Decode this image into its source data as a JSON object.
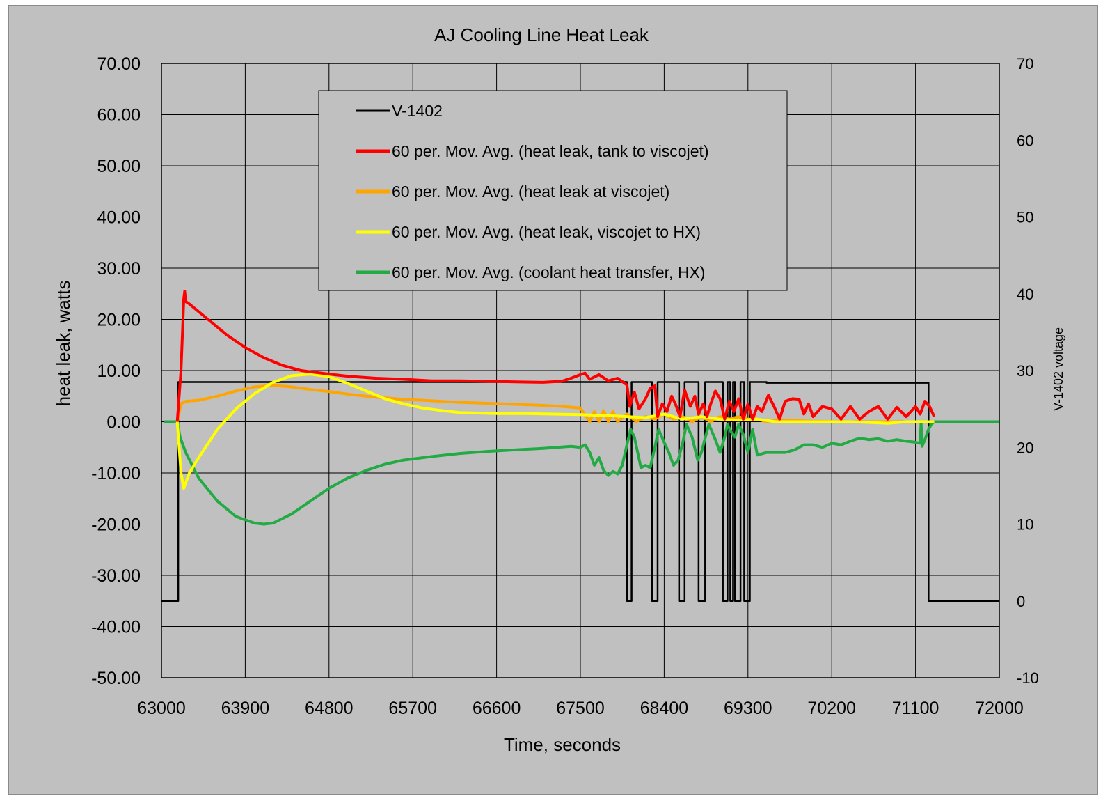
{
  "chart_data": {
    "type": "line",
    "title": "AJ Cooling Line Heat Leak",
    "xlabel": "Time, seconds",
    "ylabel": "heat leak, watts",
    "y2label": "V-1402 voltage",
    "xlim": [
      63000,
      72000
    ],
    "ylim": [
      -50,
      70
    ],
    "y2lim": [
      -10,
      70
    ],
    "x_ticks": [
      63000,
      63900,
      64800,
      65700,
      66600,
      67500,
      68400,
      69300,
      70200,
      71100,
      72000
    ],
    "y_tick_labels": [
      "70.00",
      "60.00",
      "50.00",
      "40.00",
      "30.00",
      "20.00",
      "10.00",
      "0.00",
      "-10.00",
      "-20.00",
      "-30.00",
      "-40.00",
      "-50.00"
    ],
    "y2_ticks": [
      70,
      60,
      50,
      40,
      30,
      20,
      10,
      0,
      -10
    ],
    "grid": true,
    "legend_position": "top-center",
    "series": [
      {
        "name": "V-1402",
        "axis": "right",
        "color": "#000000",
        "step": true,
        "points": [
          [
            63000,
            0
          ],
          [
            63180,
            0
          ],
          [
            63180,
            28.5
          ],
          [
            68000,
            28.5
          ],
          [
            68000,
            0
          ],
          [
            68050,
            0
          ],
          [
            68050,
            28.5
          ],
          [
            68270,
            28.5
          ],
          [
            68270,
            0
          ],
          [
            68330,
            0
          ],
          [
            68330,
            28.5
          ],
          [
            68560,
            28.5
          ],
          [
            68560,
            0
          ],
          [
            68620,
            0
          ],
          [
            68620,
            28.5
          ],
          [
            68770,
            28.5
          ],
          [
            68770,
            0
          ],
          [
            68840,
            0
          ],
          [
            68840,
            28.5
          ],
          [
            69030,
            28.5
          ],
          [
            69030,
            0
          ],
          [
            69080,
            0
          ],
          [
            69080,
            28.5
          ],
          [
            69110,
            28.5
          ],
          [
            69110,
            0
          ],
          [
            69140,
            0
          ],
          [
            69140,
            28.5
          ],
          [
            69160,
            28.5
          ],
          [
            69160,
            0
          ],
          [
            69220,
            0
          ],
          [
            69220,
            28.5
          ],
          [
            69260,
            28.5
          ],
          [
            69260,
            0
          ],
          [
            69320,
            0
          ],
          [
            69320,
            28.5
          ],
          [
            69500,
            28.5
          ],
          [
            69500,
            28.4
          ],
          [
            71240,
            28.4
          ],
          [
            71240,
            0
          ],
          [
            72000,
            0
          ]
        ]
      },
      {
        "name": "60 per. Mov. Avg. (heat leak, tank to viscojet)",
        "axis": "left",
        "color": "#ff0000",
        "points": [
          [
            63170,
            0
          ],
          [
            63210,
            10
          ],
          [
            63240,
            24
          ],
          [
            63250,
            25.5
          ],
          [
            63260,
            23.5
          ],
          [
            63300,
            23
          ],
          [
            63500,
            20
          ],
          [
            63700,
            17
          ],
          [
            63900,
            14.5
          ],
          [
            64100,
            12.5
          ],
          [
            64300,
            11
          ],
          [
            64500,
            10
          ],
          [
            64800,
            9.3
          ],
          [
            65000,
            8.9
          ],
          [
            65300,
            8.5
          ],
          [
            65600,
            8.3
          ],
          [
            65900,
            8
          ],
          [
            66200,
            8
          ],
          [
            66500,
            7.9
          ],
          [
            66800,
            7.8
          ],
          [
            67100,
            7.7
          ],
          [
            67300,
            7.9
          ],
          [
            67400,
            8.5
          ],
          [
            67500,
            9.2
          ],
          [
            67550,
            9.5
          ],
          [
            67600,
            8.3
          ],
          [
            67700,
            9.2
          ],
          [
            67800,
            8
          ],
          [
            67900,
            8.5
          ],
          [
            68000,
            7.2
          ],
          [
            68030,
            3
          ],
          [
            68080,
            5.8
          ],
          [
            68130,
            2.5
          ],
          [
            68200,
            4.5
          ],
          [
            68250,
            6.5
          ],
          [
            68300,
            7
          ],
          [
            68330,
            1
          ],
          [
            68380,
            3.5
          ],
          [
            68430,
            2
          ],
          [
            68480,
            5
          ],
          [
            68520,
            3.5
          ],
          [
            68570,
            1
          ],
          [
            68620,
            6.2
          ],
          [
            68680,
            3
          ],
          [
            68730,
            5
          ],
          [
            68770,
            1.5
          ],
          [
            68820,
            3.5
          ],
          [
            68860,
            1
          ],
          [
            68900,
            3.5
          ],
          [
            68950,
            6
          ],
          [
            69000,
            4.5
          ],
          [
            69050,
            0.5
          ],
          [
            69100,
            4
          ],
          [
            69150,
            2
          ],
          [
            69200,
            4.5
          ],
          [
            69250,
            0.5
          ],
          [
            69300,
            3.5
          ],
          [
            69350,
            0.5
          ],
          [
            69400,
            3
          ],
          [
            69450,
            2
          ],
          [
            69520,
            5.2
          ],
          [
            69580,
            3
          ],
          [
            69640,
            0.5
          ],
          [
            69700,
            4
          ],
          [
            69780,
            4.5
          ],
          [
            69850,
            4.4
          ],
          [
            69900,
            1.5
          ],
          [
            69950,
            3.5
          ],
          [
            70000,
            1
          ],
          [
            70100,
            3
          ],
          [
            70200,
            2.5
          ],
          [
            70300,
            0.5
          ],
          [
            70400,
            3
          ],
          [
            70500,
            0.5
          ],
          [
            70600,
            2
          ],
          [
            70700,
            3
          ],
          [
            70800,
            0.5
          ],
          [
            70900,
            2.8
          ],
          [
            71000,
            1
          ],
          [
            71100,
            3
          ],
          [
            71150,
            1.5
          ],
          [
            71200,
            4
          ],
          [
            71250,
            3
          ],
          [
            71300,
            1
          ]
        ]
      },
      {
        "name": "60 per. Mov. Avg. (heat leak at viscojet)",
        "axis": "left",
        "color": "#ffa500",
        "points": [
          [
            63170,
            0
          ],
          [
            63210,
            3.5
          ],
          [
            63260,
            4
          ],
          [
            63400,
            4.2
          ],
          [
            63600,
            5
          ],
          [
            63800,
            6
          ],
          [
            64000,
            6.8
          ],
          [
            64200,
            7.1
          ],
          [
            64400,
            6.8
          ],
          [
            64600,
            6.3
          ],
          [
            64800,
            5.9
          ],
          [
            65000,
            5.4
          ],
          [
            65300,
            4.8
          ],
          [
            65600,
            4.4
          ],
          [
            65900,
            4.1
          ],
          [
            66200,
            3.8
          ],
          [
            66500,
            3.6
          ],
          [
            66800,
            3.4
          ],
          [
            67100,
            3.2
          ],
          [
            67300,
            3
          ],
          [
            67500,
            2.7
          ],
          [
            67600,
            0
          ],
          [
            67650,
            2
          ],
          [
            67700,
            0
          ],
          [
            67750,
            2.2
          ],
          [
            67800,
            0
          ],
          [
            67850,
            2
          ],
          [
            67900,
            0
          ],
          [
            68000,
            1.5
          ],
          [
            68100,
            0
          ],
          [
            68200,
            1
          ],
          [
            68300,
            0.5
          ],
          [
            68400,
            1.5
          ],
          [
            68500,
            0.5
          ],
          [
            68600,
            1
          ],
          [
            68700,
            0
          ],
          [
            68800,
            1
          ],
          [
            68900,
            0
          ],
          [
            69000,
            1
          ],
          [
            69100,
            0.5
          ],
          [
            69200,
            1
          ],
          [
            69300,
            0.5
          ],
          [
            69400,
            0.5
          ],
          [
            69500,
            0
          ],
          [
            69600,
            0.3
          ],
          [
            69800,
            0.2
          ],
          [
            70000,
            0.1
          ],
          [
            70400,
            0
          ],
          [
            70800,
            0
          ],
          [
            71300,
            0
          ]
        ]
      },
      {
        "name": "60 per. Mov. Avg. (heat leak, viscojet to HX)",
        "axis": "left",
        "color": "#ffff00",
        "points": [
          [
            63170,
            0
          ],
          [
            63210,
            -10
          ],
          [
            63240,
            -13
          ],
          [
            63300,
            -10
          ],
          [
            63400,
            -7
          ],
          [
            63600,
            -1.5
          ],
          [
            63800,
            2.5
          ],
          [
            64000,
            5.5
          ],
          [
            64200,
            7.7
          ],
          [
            64400,
            9
          ],
          [
            64600,
            9.3
          ],
          [
            64800,
            8.8
          ],
          [
            65000,
            7.5
          ],
          [
            65200,
            6
          ],
          [
            65400,
            4.5
          ],
          [
            65600,
            3.5
          ],
          [
            65800,
            2.7
          ],
          [
            66000,
            2.2
          ],
          [
            66200,
            1.8
          ],
          [
            66400,
            1.7
          ],
          [
            66600,
            1.6
          ],
          [
            66900,
            1.6
          ],
          [
            67200,
            1.5
          ],
          [
            67500,
            1.4
          ],
          [
            67800,
            1.2
          ],
          [
            68000,
            1
          ],
          [
            68200,
            0.8
          ],
          [
            68400,
            1.5
          ],
          [
            68600,
            0.5
          ],
          [
            68800,
            1
          ],
          [
            69000,
            0.5
          ],
          [
            69200,
            0.3
          ],
          [
            69400,
            0.5
          ],
          [
            69600,
            0
          ],
          [
            70000,
            0
          ],
          [
            70400,
            0
          ],
          [
            70800,
            -0.3
          ],
          [
            71000,
            0
          ],
          [
            71300,
            0
          ]
        ]
      },
      {
        "name": "60 per. Mov. Avg. (coolant heat transfer, HX)",
        "axis": "left",
        "color": "#22aa44",
        "points": [
          [
            63030,
            0
          ],
          [
            63170,
            0
          ],
          [
            63200,
            -3
          ],
          [
            63260,
            -6
          ],
          [
            63400,
            -11
          ],
          [
            63600,
            -15.5
          ],
          [
            63800,
            -18.5
          ],
          [
            64000,
            -19.8
          ],
          [
            64100,
            -20
          ],
          [
            64200,
            -19.8
          ],
          [
            64400,
            -18
          ],
          [
            64600,
            -15.5
          ],
          [
            64800,
            -13
          ],
          [
            65000,
            -11
          ],
          [
            65200,
            -9.5
          ],
          [
            65400,
            -8.3
          ],
          [
            65600,
            -7.5
          ],
          [
            65900,
            -6.8
          ],
          [
            66200,
            -6.2
          ],
          [
            66500,
            -5.8
          ],
          [
            66800,
            -5.5
          ],
          [
            67100,
            -5.2
          ],
          [
            67400,
            -4.8
          ],
          [
            67500,
            -5
          ],
          [
            67550,
            -4.5
          ],
          [
            67600,
            -6
          ],
          [
            67650,
            -8.5
          ],
          [
            67700,
            -7
          ],
          [
            67750,
            -9.5
          ],
          [
            67800,
            -10.5
          ],
          [
            67850,
            -9.7
          ],
          [
            67900,
            -10.2
          ],
          [
            67950,
            -8.5
          ],
          [
            68000,
            -4.5
          ],
          [
            68040,
            -1.5
          ],
          [
            68080,
            -3
          ],
          [
            68150,
            -9
          ],
          [
            68200,
            -8.5
          ],
          [
            68250,
            -9
          ],
          [
            68300,
            -5
          ],
          [
            68340,
            -1.5
          ],
          [
            68400,
            -4
          ],
          [
            68450,
            -6
          ],
          [
            68500,
            -8.5
          ],
          [
            68550,
            -7.5
          ],
          [
            68600,
            -4
          ],
          [
            68640,
            -0.5
          ],
          [
            68700,
            -3
          ],
          [
            68760,
            -7.5
          ],
          [
            68800,
            -6
          ],
          [
            68850,
            -2.5
          ],
          [
            68880,
            -0.5
          ],
          [
            68950,
            -3.5
          ],
          [
            69000,
            -6
          ],
          [
            69050,
            -3
          ],
          [
            69080,
            -0.5
          ],
          [
            69120,
            -2
          ],
          [
            69160,
            -3
          ],
          [
            69200,
            -0.5
          ],
          [
            69250,
            -2.5
          ],
          [
            69300,
            -6
          ],
          [
            69350,
            -1.5
          ],
          [
            69400,
            -6.5
          ],
          [
            69500,
            -6
          ],
          [
            69600,
            -6
          ],
          [
            69700,
            -6
          ],
          [
            69800,
            -5.5
          ],
          [
            69900,
            -4.5
          ],
          [
            70000,
            -4.5
          ],
          [
            70100,
            -5
          ],
          [
            70200,
            -4.2
          ],
          [
            70300,
            -4.5
          ],
          [
            70400,
            -3.8
          ],
          [
            70500,
            -3.2
          ],
          [
            70600,
            -3.5
          ],
          [
            70700,
            -3.3
          ],
          [
            70800,
            -3.8
          ],
          [
            70900,
            -3.5
          ],
          [
            71000,
            -3.8
          ],
          [
            71100,
            -4
          ],
          [
            71150,
            -4.2
          ],
          [
            71160,
            0
          ],
          [
            71170,
            -4.8
          ],
          [
            71200,
            -3.5
          ],
          [
            71240,
            -1.5
          ],
          [
            71270,
            -0.5
          ],
          [
            71300,
            0
          ],
          [
            72000,
            0
          ]
        ]
      }
    ]
  }
}
